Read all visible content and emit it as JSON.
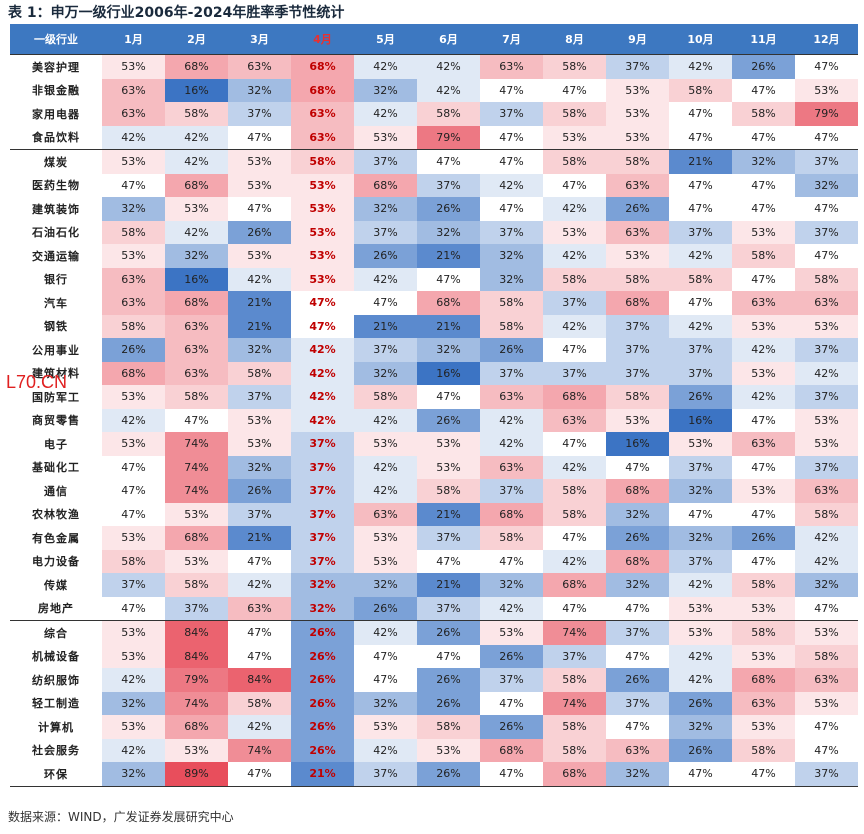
{
  "title": "表 1：申万一级行业2006年-2024年胜率季节性统计",
  "header": {
    "industry_label": "一级行业",
    "months": [
      "1月",
      "2月",
      "3月",
      "4月",
      "5月",
      "6月",
      "7月",
      "8月",
      "9月",
      "10月",
      "11月",
      "12月"
    ],
    "highlight_month": 3
  },
  "rows": [
    {
      "name": "美容护理",
      "values": [
        53,
        68,
        63,
        68,
        42,
        42,
        63,
        58,
        37,
        42,
        26,
        47
      ]
    },
    {
      "name": "非银金融",
      "values": [
        63,
        16,
        32,
        68,
        32,
        42,
        47,
        47,
        53,
        58,
        47,
        53
      ]
    },
    {
      "name": "家用电器",
      "values": [
        63,
        58,
        37,
        63,
        42,
        58,
        37,
        58,
        53,
        47,
        58,
        79
      ]
    },
    {
      "name": "食品饮料",
      "values": [
        42,
        42,
        47,
        63,
        53,
        79,
        47,
        53,
        53,
        47,
        47,
        47
      ]
    },
    {
      "name": "煤炭",
      "values": [
        53,
        42,
        53,
        58,
        37,
        47,
        47,
        58,
        58,
        21,
        32,
        37
      ]
    },
    {
      "name": "医药生物",
      "values": [
        47,
        68,
        53,
        53,
        68,
        37,
        42,
        47,
        63,
        47,
        47,
        32
      ]
    },
    {
      "name": "建筑装饰",
      "values": [
        32,
        53,
        47,
        53,
        32,
        26,
        47,
        42,
        26,
        47,
        47,
        47
      ]
    },
    {
      "name": "石油石化",
      "values": [
        58,
        42,
        26,
        53,
        37,
        32,
        37,
        53,
        63,
        37,
        53,
        37
      ]
    },
    {
      "name": "交通运输",
      "values": [
        53,
        32,
        53,
        53,
        26,
        21,
        32,
        42,
        53,
        42,
        58,
        47
      ]
    },
    {
      "name": "银行",
      "values": [
        63,
        16,
        42,
        53,
        42,
        47,
        32,
        58,
        58,
        58,
        47,
        58
      ]
    },
    {
      "name": "汽车",
      "values": [
        63,
        68,
        21,
        47,
        47,
        68,
        58,
        37,
        68,
        47,
        63,
        63
      ]
    },
    {
      "name": "钢铁",
      "values": [
        58,
        63,
        21,
        47,
        21,
        21,
        58,
        42,
        37,
        42,
        53,
        53
      ]
    },
    {
      "name": "公用事业",
      "values": [
        26,
        63,
        32,
        42,
        37,
        32,
        26,
        47,
        37,
        37,
        42,
        37
      ]
    },
    {
      "name": "建筑材料",
      "values": [
        68,
        63,
        58,
        42,
        32,
        16,
        37,
        37,
        37,
        37,
        53,
        42
      ]
    },
    {
      "name": "国防军工",
      "values": [
        53,
        58,
        37,
        42,
        58,
        47,
        63,
        68,
        58,
        26,
        42,
        37
      ]
    },
    {
      "name": "商贸零售",
      "values": [
        42,
        47,
        53,
        42,
        42,
        26,
        42,
        63,
        53,
        16,
        47,
        53
      ]
    },
    {
      "name": "电子",
      "values": [
        53,
        74,
        53,
        37,
        53,
        53,
        42,
        47,
        16,
        53,
        63,
        53
      ]
    },
    {
      "name": "基础化工",
      "values": [
        47,
        74,
        32,
        37,
        42,
        53,
        63,
        42,
        47,
        37,
        47,
        37
      ]
    },
    {
      "name": "通信",
      "values": [
        47,
        74,
        26,
        37,
        42,
        58,
        37,
        58,
        68,
        32,
        53,
        63
      ]
    },
    {
      "name": "农林牧渔",
      "values": [
        47,
        53,
        37,
        37,
        63,
        21,
        68,
        58,
        32,
        47,
        47,
        58
      ]
    },
    {
      "name": "有色金属",
      "values": [
        53,
        68,
        21,
        37,
        53,
        37,
        58,
        47,
        26,
        32,
        26,
        42
      ]
    },
    {
      "name": "电力设备",
      "values": [
        58,
        53,
        47,
        37,
        53,
        47,
        47,
        42,
        68,
        37,
        47,
        42
      ]
    },
    {
      "name": "传媒",
      "values": [
        37,
        58,
        42,
        32,
        32,
        21,
        32,
        68,
        32,
        42,
        58,
        32
      ]
    },
    {
      "name": "房地产",
      "values": [
        47,
        37,
        63,
        32,
        26,
        37,
        42,
        47,
        47,
        53,
        53,
        47
      ]
    },
    {
      "name": "综合",
      "values": [
        53,
        84,
        47,
        26,
        42,
        26,
        53,
        74,
        37,
        53,
        58,
        53
      ]
    },
    {
      "name": "机械设备",
      "values": [
        53,
        84,
        47,
        26,
        47,
        47,
        26,
        37,
        47,
        42,
        53,
        58
      ]
    },
    {
      "name": "纺织服饰",
      "values": [
        42,
        79,
        84,
        26,
        47,
        26,
        37,
        58,
        26,
        42,
        68,
        63
      ]
    },
    {
      "name": "轻工制造",
      "values": [
        32,
        74,
        58,
        26,
        32,
        26,
        47,
        74,
        37,
        26,
        63,
        53
      ]
    },
    {
      "name": "计算机",
      "values": [
        53,
        68,
        42,
        26,
        53,
        58,
        26,
        58,
        47,
        32,
        53,
        47
      ]
    },
    {
      "name": "社会服务",
      "values": [
        42,
        53,
        74,
        26,
        42,
        53,
        68,
        58,
        63,
        26,
        58,
        47
      ]
    },
    {
      "name": "环保",
      "values": [
        32,
        89,
        47,
        21,
        37,
        26,
        47,
        68,
        32,
        47,
        47,
        37
      ]
    }
  ],
  "group_starts": [
    0,
    4,
    24
  ],
  "watermark": "L70.CN",
  "source": "数据来源：WIND，广发证券发展研究中心"
}
